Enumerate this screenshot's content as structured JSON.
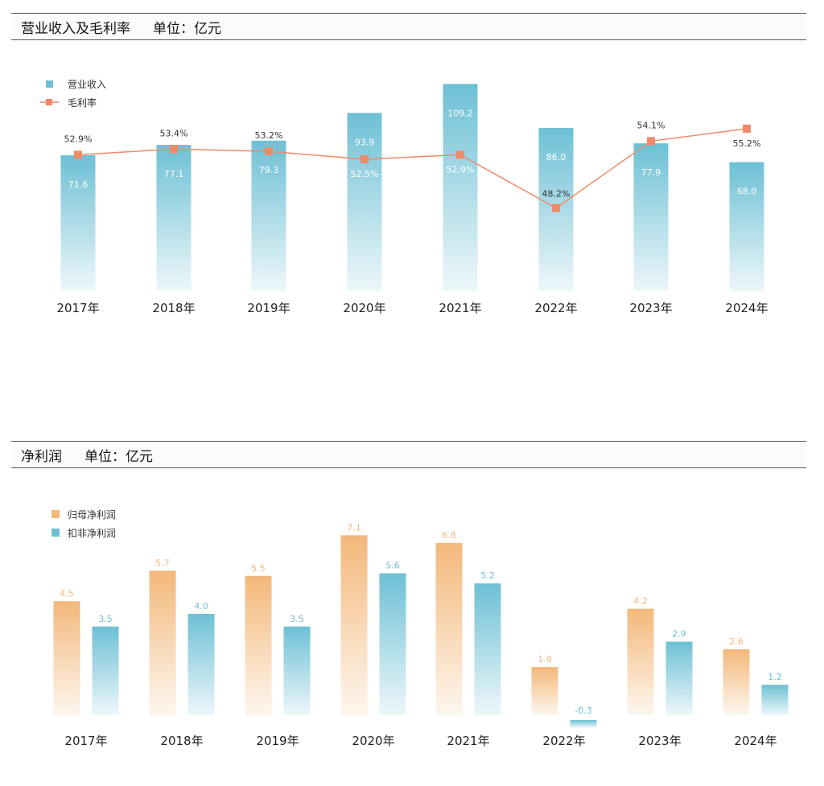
{
  "chart_data": [
    {
      "type": "bar",
      "title": "营业收入及毛利率",
      "unit": "单位：亿元",
      "categories": [
        "2017年",
        "2018年",
        "2019年",
        "2020年",
        "2021年",
        "2022年",
        "2023年",
        "2024年"
      ],
      "series": [
        {
          "name": "营业收入",
          "type": "bar",
          "values": [
            71.6,
            77.1,
            79.3,
            93.9,
            109.2,
            86.0,
            77.9,
            68.0
          ],
          "labels": [
            "71.6",
            "77.1",
            "79.3",
            "93.9",
            "109.2",
            "86.0",
            "77.9",
            "68.0"
          ]
        },
        {
          "name": "毛利率",
          "type": "line",
          "values": [
            52.9,
            53.4,
            53.2,
            52.5,
            52.9,
            48.2,
            54.1,
            55.2
          ],
          "labels": [
            "52.9%",
            "53.4%",
            "53.2%",
            "52.5%",
            "52.9%",
            "48.2%",
            "54.1%",
            "55.2%"
          ]
        }
      ],
      "colors": {
        "bar": "#6dc0d5",
        "line": "#ee8a6a"
      },
      "legend": "top-left",
      "grid": false
    },
    {
      "type": "bar",
      "title": "净利润",
      "unit": "单位：亿元",
      "categories": [
        "2017年",
        "2018年",
        "2019年",
        "2020年",
        "2021年",
        "2022年",
        "2023年",
        "2024年"
      ],
      "series": [
        {
          "name": "归母净利润",
          "values": [
            4.5,
            5.7,
            5.5,
            7.1,
            6.8,
            1.9,
            4.2,
            2.6
          ],
          "labels": [
            "4.5",
            "5.7",
            "5.5",
            "7.1",
            "6.8",
            "1.9",
            "4.2",
            "2.6"
          ]
        },
        {
          "name": "扣非净利润",
          "values": [
            3.5,
            4.0,
            3.5,
            5.6,
            5.2,
            -0.3,
            2.9,
            1.2
          ],
          "labels": [
            "3.5",
            "4.0",
            "3.5",
            "5.6",
            "5.2",
            "-0.3",
            "2.9",
            "1.2"
          ]
        }
      ],
      "colors": {
        "series1": "#f3b87a",
        "series2": "#6dc0d5"
      },
      "legend": "top-left",
      "grid": false
    }
  ]
}
